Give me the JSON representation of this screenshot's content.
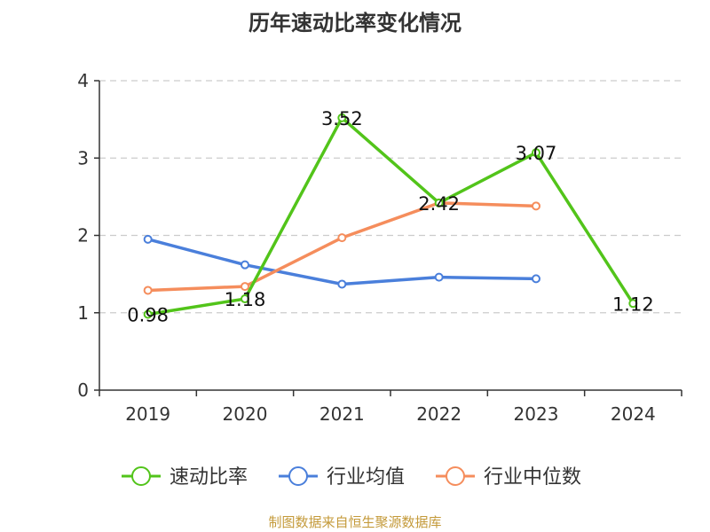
{
  "chart_data": {
    "type": "line",
    "title": "历年速动比率变化情况",
    "categories": [
      "2019",
      "2020",
      "2021",
      "2022",
      "2023",
      "2024"
    ],
    "ylim": [
      0,
      4
    ],
    "yticks": [
      "0",
      "1",
      "2",
      "3",
      "4"
    ],
    "grid": "horizontal dashed",
    "legend_position": "bottom",
    "series": [
      {
        "name": "速动比率",
        "color": "#52c41a",
        "values": [
          0.98,
          1.18,
          3.52,
          2.42,
          3.07,
          1.12
        ],
        "labels": [
          "0.98",
          "1.18",
          "3.52",
          "2.42",
          "3.07",
          "1.12"
        ]
      },
      {
        "name": "行业均值",
        "color": "#4a7fdb",
        "values": [
          1.95,
          1.62,
          1.37,
          1.46,
          1.44,
          null
        ]
      },
      {
        "name": "行业中位数",
        "color": "#f58d5c",
        "values": [
          1.29,
          1.34,
          1.97,
          2.42,
          2.38,
          null
        ]
      }
    ]
  },
  "source_note": "制图数据来自恒生聚源数据库"
}
